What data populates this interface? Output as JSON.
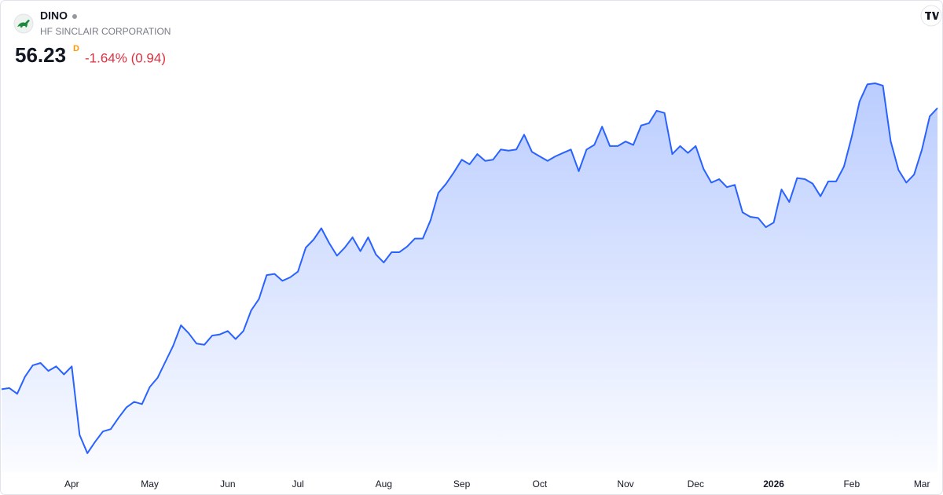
{
  "chart_data": {
    "type": "area",
    "title": "DINO",
    "subtitle": "HF SINCLAIR CORPORATION",
    "last_price": 56.23,
    "interval": "D",
    "change": "-1.64% (0.94)",
    "color": "#2962ff",
    "ylim": [
      24.4,
      59.5
    ],
    "categories": [
      null,
      null,
      null,
      null,
      null,
      null,
      null,
      null,
      null,
      "Apr",
      null,
      null,
      null,
      null,
      null,
      null,
      null,
      null,
      null,
      "May",
      null,
      null,
      null,
      null,
      null,
      null,
      null,
      null,
      null,
      "Jun",
      null,
      null,
      null,
      null,
      null,
      null,
      null,
      null,
      "Jul",
      null,
      null,
      null,
      null,
      null,
      null,
      null,
      null,
      null,
      null,
      "Aug",
      null,
      null,
      null,
      null,
      null,
      null,
      null,
      null,
      null,
      "Sep",
      null,
      null,
      null,
      null,
      null,
      null,
      null,
      null,
      null,
      "Oct",
      null,
      null,
      null,
      null,
      null,
      null,
      null,
      null,
      null,
      null,
      "Nov",
      null,
      null,
      null,
      null,
      null,
      null,
      null,
      null,
      "Dec",
      null,
      null,
      null,
      null,
      null,
      null,
      null,
      null,
      null,
      "2026",
      null,
      null,
      null,
      null,
      null,
      null,
      null,
      null,
      null,
      "Feb",
      null,
      null,
      null,
      null,
      null,
      null,
      null,
      null,
      "Mar",
      null,
      null
    ],
    "values": [
      31.6,
      31.7,
      31.2,
      32.7,
      33.7,
      33.9,
      33.2,
      33.6,
      32.9,
      33.6,
      27.6,
      26.0,
      27.0,
      27.9,
      28.1,
      29.1,
      30.0,
      30.5,
      30.3,
      31.8,
      32.6,
      34.0,
      35.4,
      37.2,
      36.5,
      35.6,
      35.5,
      36.3,
      36.4,
      36.7,
      36.0,
      36.7,
      38.5,
      39.5,
      41.6,
      41.7,
      41.1,
      41.4,
      41.9,
      44.0,
      44.7,
      45.7,
      44.4,
      43.3,
      44.0,
      44.9,
      43.7,
      44.9,
      43.4,
      42.7,
      43.6,
      43.6,
      44.1,
      44.8,
      44.8,
      46.4,
      48.8,
      49.6,
      50.6,
      51.7,
      51.3,
      52.2,
      51.6,
      51.7,
      52.6,
      52.5,
      52.6,
      53.9,
      52.4,
      52.0,
      51.6,
      52.0,
      52.3,
      52.6,
      50.7,
      52.6,
      53.0,
      54.6,
      52.9,
      52.9,
      53.3,
      53.0,
      54.7,
      54.9,
      56.0,
      55.8,
      52.2,
      52.9,
      52.3,
      52.9,
      50.9,
      49.7,
      50.0,
      49.3,
      49.5,
      47.1,
      46.7,
      46.6,
      45.8,
      46.2,
      49.1,
      48.0,
      50.1,
      50.0,
      49.6,
      48.5,
      49.8,
      49.8,
      51.1,
      53.7,
      56.8,
      58.3,
      58.4,
      58.2,
      53.3,
      50.8,
      49.7,
      50.4,
      52.6,
      55.5,
      56.23
    ]
  }
}
